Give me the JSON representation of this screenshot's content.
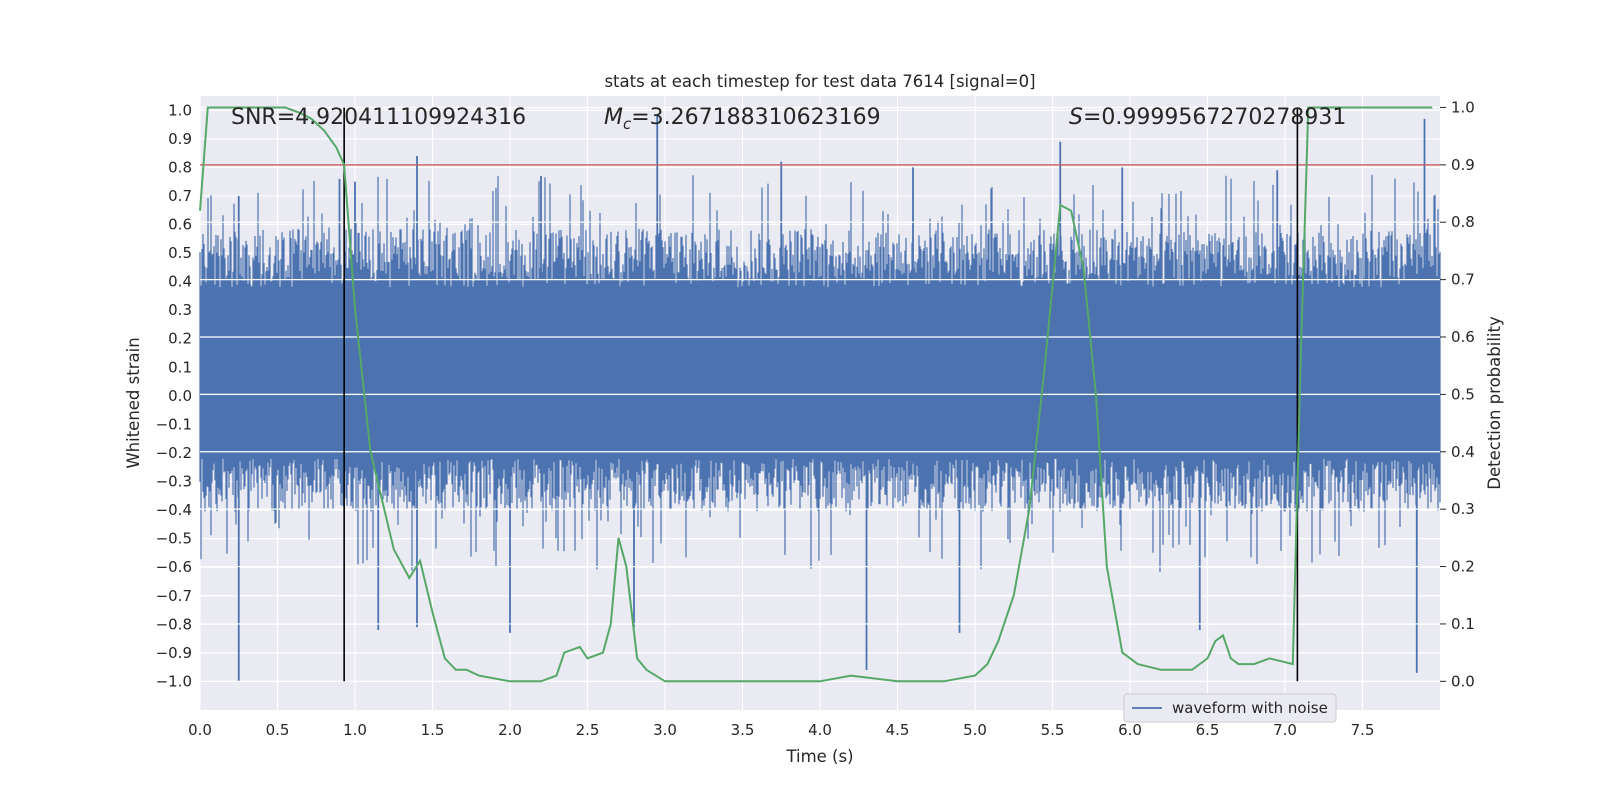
{
  "chart_data": {
    "type": "line",
    "title": "stats at each timestep for test data 7614 [signal=0]",
    "xlabel": "Time (s)",
    "ylabel_left": "Whitened strain",
    "ylabel_right": "Detection probability",
    "xlim": [
      0.0,
      8.0
    ],
    "ylim_left": [
      -1.1,
      1.05
    ],
    "ylim_right": [
      -0.05,
      1.02
    ],
    "x_ticks": [
      "0.0",
      "0.5",
      "1.0",
      "1.5",
      "2.0",
      "2.5",
      "3.0",
      "3.5",
      "4.0",
      "4.5",
      "5.0",
      "5.5",
      "6.0",
      "6.5",
      "7.0",
      "7.5"
    ],
    "y_left_ticks": [
      "1.0",
      "0.9",
      "0.8",
      "0.7",
      "0.6",
      "0.5",
      "0.4",
      "0.3",
      "0.2",
      "0.1",
      "0.0",
      "−0.1",
      "−0.2",
      "−0.3",
      "−0.4",
      "−0.5",
      "−0.6",
      "−0.7",
      "−0.8",
      "−0.9",
      "−1.0"
    ],
    "y_right_ticks": [
      "1.0",
      "0.9",
      "0.8",
      "0.7",
      "0.6",
      "0.5",
      "0.4",
      "0.3",
      "0.2",
      "0.1",
      "0.0"
    ],
    "annotations": {
      "snr": "SNR=4.920411109924316",
      "mc_symbol": "M",
      "mc_sub": "c",
      "mc_value": "=3.267188310623169",
      "s_symbol": "S",
      "s_value": "=0.9999567270278931"
    },
    "threshold": {
      "value": 0.9,
      "color": "#c44e52"
    },
    "vertical_markers": [
      0.93,
      7.08
    ],
    "legend": {
      "label": "waveform with noise",
      "placement": "lower-right"
    },
    "series": [
      {
        "name": "waveform with noise",
        "axis": "left",
        "color": "#4c72b0",
        "noise_band": [
          -0.22,
          0.38
        ],
        "spikes_up": [
          [
            0.25,
            0.7
          ],
          [
            0.9,
            0.76
          ],
          [
            1.0,
            0.75
          ],
          [
            1.4,
            0.84
          ],
          [
            2.2,
            0.77
          ],
          [
            2.95,
            0.98
          ],
          [
            3.75,
            0.82
          ],
          [
            4.6,
            0.8
          ],
          [
            5.55,
            0.89
          ],
          [
            5.95,
            0.8
          ],
          [
            6.95,
            0.79
          ],
          [
            7.9,
            0.97
          ]
        ],
        "spikes_down": [
          [
            0.25,
            -1.0
          ],
          [
            1.15,
            -0.82
          ],
          [
            1.4,
            -0.81
          ],
          [
            2.0,
            -0.83
          ],
          [
            2.8,
            -0.81
          ],
          [
            4.3,
            -0.96
          ],
          [
            4.9,
            -0.83
          ],
          [
            6.45,
            -0.82
          ],
          [
            7.85,
            -0.97
          ]
        ],
        "color_name": "steel-blue"
      },
      {
        "name": "detection probability",
        "axis": "right",
        "color": "#55a868",
        "x": [
          0.0,
          0.05,
          0.1,
          0.3,
          0.55,
          0.65,
          0.72,
          0.8,
          0.88,
          0.93,
          1.0,
          1.1,
          1.25,
          1.35,
          1.42,
          1.5,
          1.58,
          1.65,
          1.72,
          1.8,
          2.0,
          2.2,
          2.3,
          2.35,
          2.45,
          2.5,
          2.6,
          2.65,
          2.7,
          2.75,
          2.82,
          2.88,
          3.0,
          3.1,
          3.5,
          4.0,
          4.2,
          4.5,
          4.8,
          5.0,
          5.08,
          5.15,
          5.25,
          5.35,
          5.45,
          5.55,
          5.62,
          5.7,
          5.78,
          5.85,
          5.95,
          6.05,
          6.2,
          6.4,
          6.5,
          6.55,
          6.6,
          6.65,
          6.7,
          6.8,
          6.9,
          7.05,
          7.1,
          7.15,
          7.25,
          7.95
        ],
        "y": [
          0.82,
          1.0,
          1.0,
          1.0,
          1.0,
          0.99,
          0.98,
          0.96,
          0.93,
          0.9,
          0.65,
          0.4,
          0.23,
          0.18,
          0.21,
          0.12,
          0.04,
          0.02,
          0.02,
          0.01,
          0.0,
          0.0,
          0.01,
          0.05,
          0.06,
          0.04,
          0.05,
          0.1,
          0.25,
          0.2,
          0.04,
          0.02,
          0.0,
          0.0,
          0.0,
          0.0,
          0.01,
          0.0,
          0.0,
          0.01,
          0.03,
          0.07,
          0.15,
          0.3,
          0.55,
          0.83,
          0.82,
          0.72,
          0.5,
          0.2,
          0.05,
          0.03,
          0.02,
          0.02,
          0.04,
          0.07,
          0.08,
          0.04,
          0.03,
          0.03,
          0.04,
          0.03,
          0.55,
          1.0,
          1.0,
          1.0
        ]
      }
    ]
  }
}
